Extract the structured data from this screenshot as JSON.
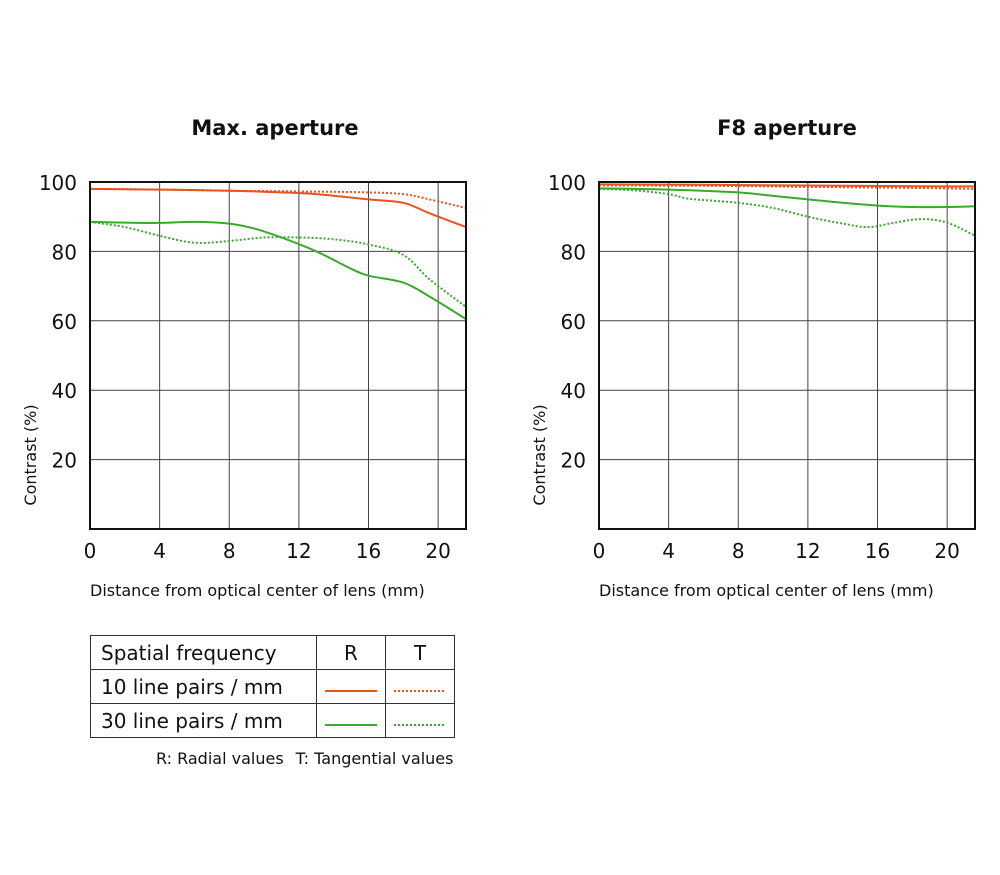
{
  "chart_data": [
    {
      "type": "line",
      "title": "Max. aperture",
      "xlabel": "Distance from optical center of lens (mm)",
      "ylabel": "Contrast (%)",
      "xlim": [
        0,
        21.6
      ],
      "ylim": [
        0,
        100
      ],
      "xticks": [
        0,
        4,
        8,
        12,
        16,
        20
      ],
      "yticks": [
        20,
        40,
        60,
        80,
        100
      ],
      "grid": true,
      "series": [
        {
          "name": "10 line pairs / mm R",
          "color": "#e8531e",
          "style": "solid",
          "x": [
            0,
            4,
            8,
            11,
            13,
            16,
            18,
            19.5,
            21.6
          ],
          "y": [
            98,
            97.8,
            97.5,
            97,
            96.5,
            95,
            94,
            91,
            87
          ]
        },
        {
          "name": "10 line pairs / mm T",
          "color": "#e8531e",
          "style": "dotted",
          "x": [
            0,
            4,
            8,
            12,
            16,
            18,
            19.5,
            21.6
          ],
          "y": [
            98,
            97.8,
            97.5,
            97.3,
            97,
            96.5,
            95,
            92.5
          ]
        },
        {
          "name": "30 line pairs / mm R",
          "color": "#3aaa2c",
          "style": "solid",
          "x": [
            0,
            2,
            4,
            6,
            8,
            9.5,
            11,
            13,
            15,
            16,
            18,
            19.5,
            21.6
          ],
          "y": [
            88.5,
            88.3,
            88.2,
            88.5,
            88,
            86.5,
            84,
            80,
            75,
            73,
            71,
            67,
            60.5
          ]
        },
        {
          "name": "30 line pairs / mm T",
          "color": "#3aaa2c",
          "style": "dotted",
          "x": [
            0,
            2,
            4,
            6,
            8,
            10,
            12,
            14,
            16,
            18,
            19.5,
            21.6
          ],
          "y": [
            88.5,
            87,
            84.5,
            82.5,
            83,
            84,
            84,
            83.5,
            82,
            79,
            72,
            64
          ]
        }
      ]
    },
    {
      "type": "line",
      "title": "F8 aperture",
      "xlabel": "Distance from optical center of lens (mm)",
      "ylabel": "Contrast (%)",
      "xlim": [
        0,
        21.6
      ],
      "ylim": [
        0,
        100
      ],
      "xticks": [
        0,
        4,
        8,
        12,
        16,
        20
      ],
      "yticks": [
        20,
        40,
        60,
        80,
        100
      ],
      "grid": true,
      "series": [
        {
          "name": "10 line pairs / mm R",
          "color": "#e8531e",
          "style": "solid",
          "x": [
            0,
            6,
            12,
            18,
            21.6
          ],
          "y": [
            99.3,
            99.2,
            99,
            98.8,
            98.7
          ]
        },
        {
          "name": "10 line pairs / mm T",
          "color": "#e8531e",
          "style": "dotted",
          "x": [
            0,
            6,
            12,
            18,
            21.6
          ],
          "y": [
            99,
            98.9,
            98.6,
            98.3,
            98
          ]
        },
        {
          "name": "30 line pairs / mm R",
          "color": "#3aaa2c",
          "style": "solid",
          "x": [
            0,
            4,
            8,
            10,
            12,
            14,
            16,
            18,
            20,
            21.6
          ],
          "y": [
            98.2,
            97.8,
            97,
            96,
            95,
            94,
            93.2,
            92.8,
            92.8,
            93
          ]
        },
        {
          "name": "30 line pairs / mm T",
          "color": "#3aaa2c",
          "style": "dotted",
          "x": [
            0,
            2,
            4,
            5,
            6,
            8,
            10,
            12,
            14,
            15.5,
            17,
            18.5,
            20,
            21.6
          ],
          "y": [
            98,
            97.6,
            96.5,
            95.3,
            94.8,
            94,
            92.5,
            90,
            88,
            87,
            88.3,
            89.3,
            88.3,
            84.5
          ]
        }
      ]
    }
  ],
  "legend": {
    "header": "Spatial frequency",
    "col_r": "R",
    "col_t": "T",
    "row1": "10 line pairs / mm",
    "row2": "30 line pairs / mm",
    "color_10": "#e8531e",
    "color_30": "#3aaa2c"
  },
  "notes": {
    "radial": "R: Radial values",
    "tangential": "T: Tangential values"
  }
}
